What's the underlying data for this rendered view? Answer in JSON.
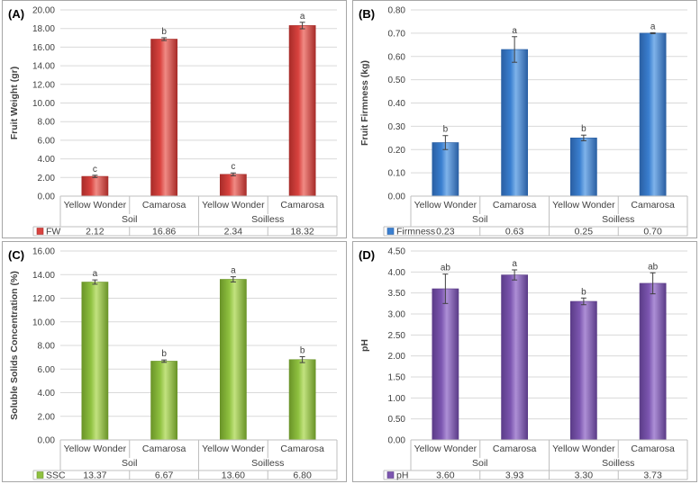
{
  "chart_data": [
    {
      "type": "bar",
      "panel_label": "(A)",
      "ylabel": "Fruit Weight (gr)",
      "ylim": [
        0,
        20
      ],
      "y_step": 2,
      "y_decimals": 2,
      "y_ticks": [
        "0.00",
        "2.00",
        "4.00",
        "6.00",
        "8.00",
        "10.00",
        "12.00",
        "14.00",
        "16.00",
        "18.00",
        "20.00"
      ],
      "categories": [
        "Yellow Wonder",
        "Camarosa",
        "Yellow Wonder",
        "Camarosa"
      ],
      "groups": [
        "Soil",
        "Soilless"
      ],
      "series": [
        {
          "name": "FW",
          "values": [
            2.12,
            16.86,
            2.34,
            18.32
          ]
        }
      ],
      "table_values": [
        "2.12",
        "16.86",
        "2.34",
        "18.32"
      ],
      "errors": [
        0.12,
        0.15,
        0.15,
        0.35
      ],
      "letters": [
        "c",
        "b",
        "c",
        "a"
      ],
      "color": "#d9433f",
      "color_light": "#f08a84",
      "color_dark": "#a82c29"
    },
    {
      "type": "bar",
      "panel_label": "(B)",
      "ylabel": "Fruit Firmness (kg)",
      "ylim": [
        0,
        0.8
      ],
      "y_step": 0.1,
      "y_decimals": 2,
      "y_ticks": [
        "0.00",
        "0.10",
        "0.20",
        "0.30",
        "0.40",
        "0.50",
        "0.60",
        "0.70",
        "0.80"
      ],
      "categories": [
        "Yellow Wonder",
        "Camarosa",
        "Yellow Wonder",
        "Camarosa"
      ],
      "groups": [
        "Soil",
        "Soilless"
      ],
      "series": [
        {
          "name": "Firmness",
          "values": [
            0.23,
            0.63,
            0.25,
            0.7
          ]
        }
      ],
      "table_values": [
        "0.23",
        "0.63",
        "0.25",
        "0.70"
      ],
      "errors": [
        0.03,
        0.055,
        0.012,
        0.002
      ],
      "letters": [
        "b",
        "a",
        "b",
        "a"
      ],
      "color": "#3a7fd0",
      "color_light": "#7fb3ea",
      "color_dark": "#2a5fa3"
    },
    {
      "type": "bar",
      "panel_label": "(C)",
      "ylabel": "Soluble Solids Concentration (%)",
      "ylim": [
        0,
        16
      ],
      "y_step": 2,
      "y_decimals": 2,
      "y_ticks": [
        "0.00",
        "2.00",
        "4.00",
        "6.00",
        "8.00",
        "10.00",
        "12.00",
        "14.00",
        "16.00"
      ],
      "categories": [
        "Yellow Wonder",
        "Camarosa",
        "Yellow Wonder",
        "Camarosa"
      ],
      "groups": [
        "Soil",
        "Soilless"
      ],
      "series": [
        {
          "name": "SSC",
          "values": [
            13.37,
            6.67,
            13.6,
            6.8
          ]
        }
      ],
      "table_values": [
        "13.37",
        "6.67",
        "13.60",
        "6.80"
      ],
      "errors": [
        0.18,
        0.1,
        0.22,
        0.25
      ],
      "letters": [
        "a",
        "b",
        "a",
        "b"
      ],
      "color": "#8fc140",
      "color_light": "#c2e27f",
      "color_dark": "#6a9428"
    },
    {
      "type": "bar",
      "panel_label": "(D)",
      "ylabel": "pH",
      "ylim": [
        0,
        4.5
      ],
      "y_step": 0.5,
      "y_decimals": 2,
      "y_ticks": [
        "0.00",
        "0.50",
        "1.00",
        "1.50",
        "2.00",
        "2.50",
        "3.00",
        "3.50",
        "4.00",
        "4.50"
      ],
      "categories": [
        "Yellow Wonder",
        "Camarosa",
        "Yellow Wonder",
        "Camarosa"
      ],
      "groups": [
        "Soil",
        "Soilless"
      ],
      "series": [
        {
          "name": "pH",
          "values": [
            3.6,
            3.93,
            3.3,
            3.73
          ]
        }
      ],
      "table_values": [
        "3.60",
        "3.93",
        "3.30",
        "3.73"
      ],
      "errors": [
        0.35,
        0.12,
        0.08,
        0.25
      ],
      "letters": [
        "ab",
        "a",
        "b",
        "ab"
      ],
      "color": "#7c56b0",
      "color_light": "#ad8fd6",
      "color_dark": "#5b3c88"
    }
  ]
}
